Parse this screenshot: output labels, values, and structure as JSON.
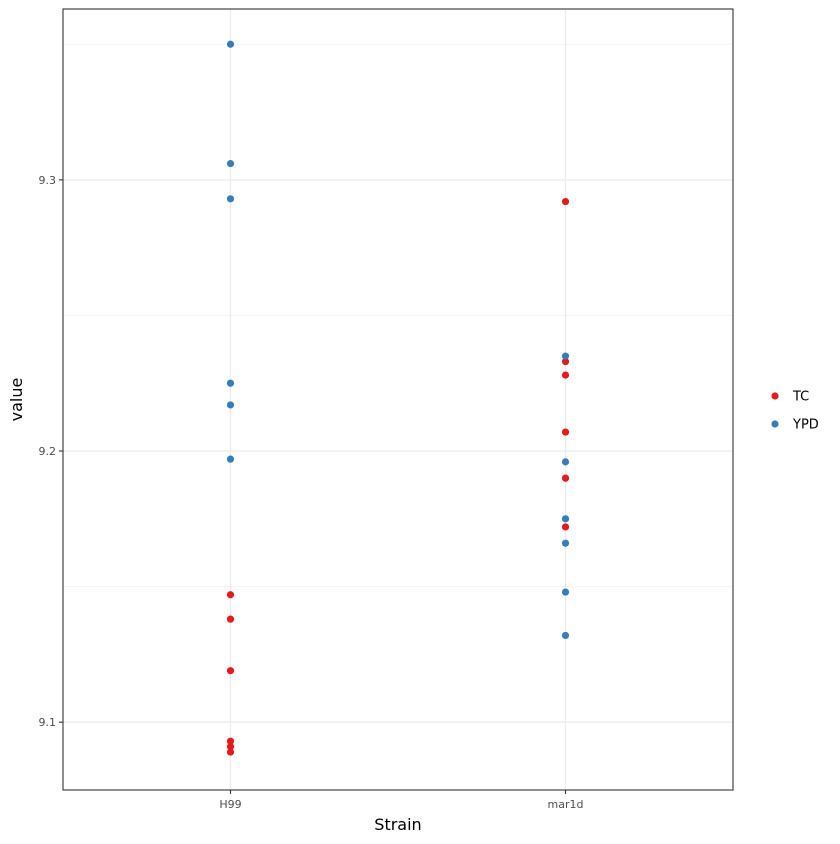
{
  "chart_data": {
    "type": "scatter",
    "xlabel": "Strain",
    "ylabel": "value",
    "categories": [
      "H99",
      "mar1d"
    ],
    "ylim": [
      9.075,
      9.363
    ],
    "y_ticks": [
      9.1,
      9.2,
      9.3
    ],
    "y_tick_labels": [
      "9.1",
      "9.2",
      "9.3"
    ],
    "grid": true,
    "legend_position": "right",
    "series": [
      {
        "name": "TC",
        "color": "#e41a1c",
        "points": [
          {
            "x": "H99",
            "y": 9.147
          },
          {
            "x": "H99",
            "y": 9.138
          },
          {
            "x": "H99",
            "y": 9.119
          },
          {
            "x": "H99",
            "y": 9.093
          },
          {
            "x": "H99",
            "y": 9.091
          },
          {
            "x": "H99",
            "y": 9.089
          },
          {
            "x": "mar1d",
            "y": 9.292
          },
          {
            "x": "mar1d",
            "y": 9.233
          },
          {
            "x": "mar1d",
            "y": 9.228
          },
          {
            "x": "mar1d",
            "y": 9.207
          },
          {
            "x": "mar1d",
            "y": 9.19
          },
          {
            "x": "mar1d",
            "y": 9.172
          }
        ]
      },
      {
        "name": "YPD",
        "color": "#377eb8",
        "points": [
          {
            "x": "H99",
            "y": 9.35
          },
          {
            "x": "H99",
            "y": 9.306
          },
          {
            "x": "H99",
            "y": 9.293
          },
          {
            "x": "H99",
            "y": 9.225
          },
          {
            "x": "H99",
            "y": 9.217
          },
          {
            "x": "H99",
            "y": 9.197
          },
          {
            "x": "mar1d",
            "y": 9.235
          },
          {
            "x": "mar1d",
            "y": 9.196
          },
          {
            "x": "mar1d",
            "y": 9.175
          },
          {
            "x": "mar1d",
            "y": 9.166
          },
          {
            "x": "mar1d",
            "y": 9.148
          },
          {
            "x": "mar1d",
            "y": 9.132
          }
        ]
      }
    ]
  }
}
